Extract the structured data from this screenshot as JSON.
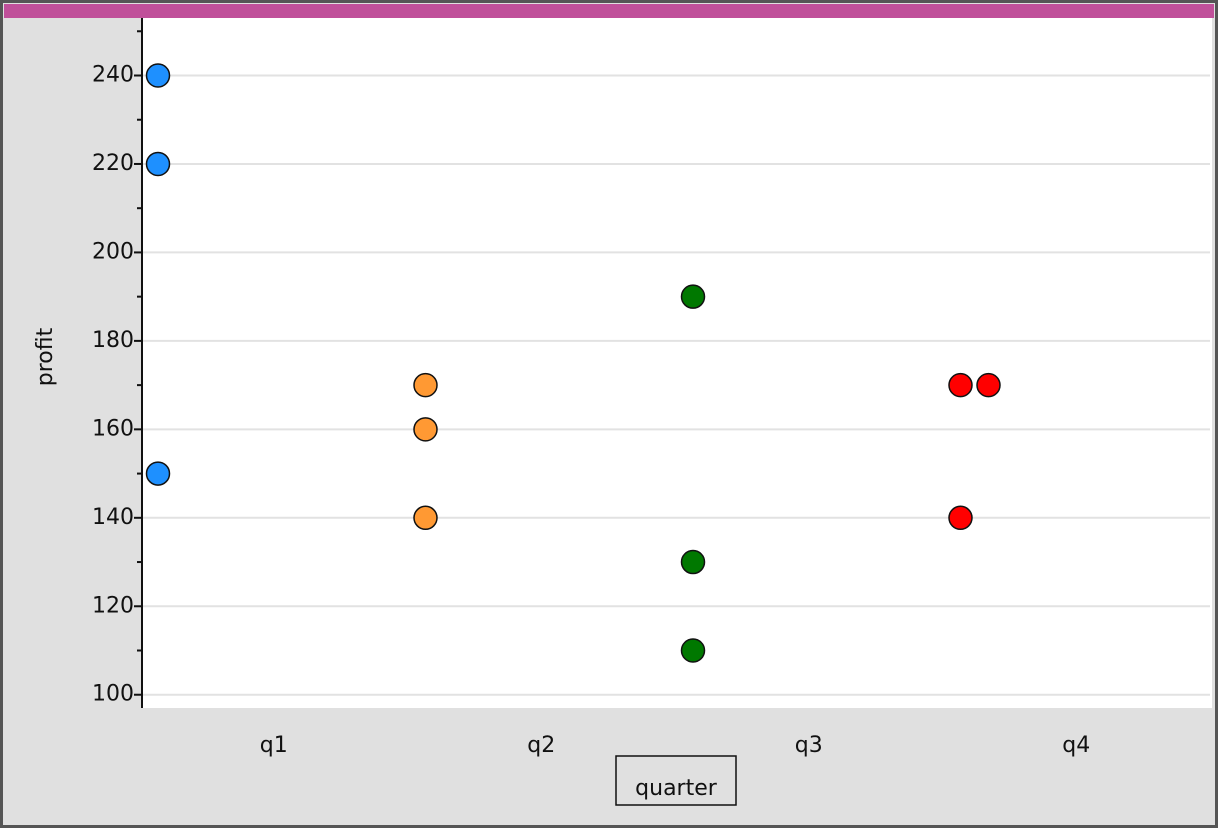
{
  "chart_data": {
    "type": "dot",
    "x_label": "quarter",
    "y_label": "profit",
    "categories": [
      "q1",
      "q2",
      "q3",
      "q4"
    ],
    "values": [
      [
        240,
        220,
        150
      ],
      [
        170,
        160,
        140
      ],
      [
        190,
        130,
        110
      ],
      [
        170,
        170,
        140
      ]
    ],
    "colors": [
      "#1e90ff",
      "#ff9933",
      "#007800",
      "#ff0000"
    ],
    "ylim": [
      97,
      253
    ],
    "yticks": [
      100,
      120,
      140,
      160,
      180,
      200,
      220,
      240
    ],
    "yminor_ticks": [
      110,
      130,
      150,
      170,
      190,
      210,
      230,
      250
    ],
    "grid": true
  }
}
